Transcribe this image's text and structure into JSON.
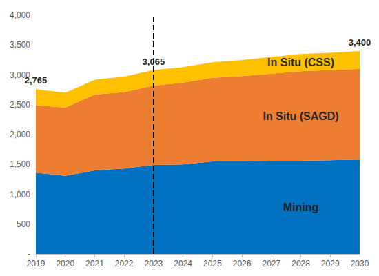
{
  "chart_data": {
    "type": "area",
    "stacked": true,
    "grid": false,
    "categories": [
      "2019",
      "2020",
      "2021",
      "2022",
      "2023",
      "2024",
      "2025",
      "2026",
      "2027",
      "2028",
      "2029",
      "2030"
    ],
    "series": [
      {
        "name": "Mining",
        "color": "#0070C0",
        "values": [
          1360,
          1310,
          1400,
          1430,
          1490,
          1500,
          1550,
          1550,
          1560,
          1560,
          1570,
          1580
        ]
      },
      {
        "name": "In Situ (SAGD)",
        "color": "#ED7D31",
        "values": [
          1130,
          1140,
          1270,
          1280,
          1330,
          1370,
          1400,
          1430,
          1460,
          1500,
          1510,
          1520
        ]
      },
      {
        "name": "In Situ (CSS)",
        "color": "#FFC000",
        "values": [
          270,
          250,
          250,
          260,
          260,
          260,
          260,
          270,
          280,
          290,
          290,
          300
        ]
      }
    ],
    "ylim": [
      0,
      4000
    ],
    "yticks": [
      {
        "value": 0,
        "label": "-"
      },
      500,
      {
        "value": 1000,
        "label": "1,000"
      },
      {
        "value": 1500,
        "label": "1,500"
      },
      {
        "value": 2000,
        "label": "2,000"
      },
      {
        "value": 2500,
        "label": "2,500"
      },
      {
        "value": 3000,
        "label": "3,000"
      },
      {
        "value": 3500,
        "label": "3,500"
      },
      {
        "value": 4000,
        "label": "4,000"
      }
    ],
    "annotations": [
      {
        "x": "2019",
        "text": "2,765"
      },
      {
        "x": "2023",
        "text": "3,065"
      },
      {
        "x": "2030",
        "text": "3,400"
      }
    ],
    "reference_line": {
      "x": "2023",
      "line_style": "dashed"
    }
  }
}
